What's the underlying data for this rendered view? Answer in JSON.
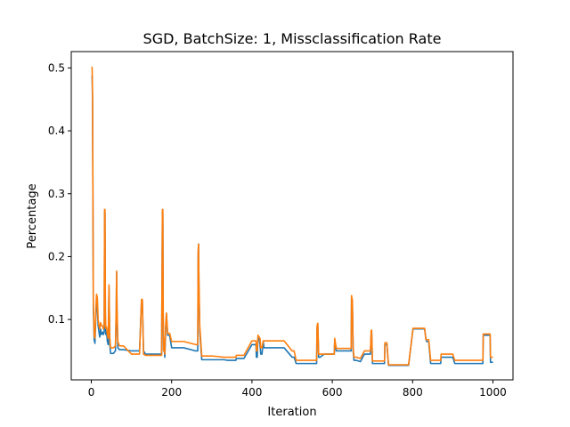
{
  "chart_data": {
    "type": "line",
    "title": "SGD, BatchSize: 1, Missclassification Rate",
    "xlabel": "Iteration",
    "ylabel": "Percentage",
    "xlim": [
      -50,
      1050
    ],
    "ylim": [
      0.004,
      0.526
    ],
    "xticks": [
      0,
      200,
      400,
      600,
      800,
      1000
    ],
    "xtick_labels": [
      "0",
      "200",
      "400",
      "600",
      "800",
      "1000"
    ],
    "yticks": [
      0.1,
      0.2,
      0.3,
      0.4,
      0.5
    ],
    "ytick_labels": [
      "0.1",
      "0.2",
      "0.3",
      "0.4",
      "0.5"
    ],
    "grid": false,
    "series": [
      {
        "color": "#1f77b4",
        "x": [
          0,
          2,
          3,
          5,
          7,
          9,
          11,
          13,
          15,
          17,
          19,
          21,
          23,
          25,
          28,
          30,
          32,
          33,
          34,
          35,
          36,
          38,
          40,
          42,
          44,
          46,
          48,
          50,
          55,
          60,
          62,
          63,
          64,
          66,
          70,
          80,
          100,
          120,
          125,
          127,
          130,
          135,
          175,
          177,
          178,
          179,
          180,
          181,
          183,
          185,
          187,
          190,
          195,
          200,
          210,
          230,
          260,
          265,
          266,
          267,
          268,
          270,
          275,
          280,
          300,
          330,
          340,
          360,
          361,
          370,
          380,
          400,
          410,
          411,
          413,
          415,
          418,
          420,
          422,
          425,
          428,
          430,
          440,
          460,
          480,
          500,
          505,
          510,
          540,
          560,
          561,
          562,
          564,
          566,
          570,
          580,
          600,
          605,
          606,
          610,
          620,
          640,
          646,
          647,
          648,
          650,
          652,
          654,
          656,
          660,
          670,
          680,
          681,
          690,
          695,
          697,
          698,
          700,
          710,
          720,
          730,
          731,
          733,
          736,
          740,
          745,
          760,
          790,
          800,
          801,
          810,
          830,
          833,
          835,
          840,
          845,
          860,
          870,
          871,
          880,
          890,
          900,
          905,
          910,
          920,
          960,
          975,
          976,
          990,
          993,
          994,
          1000
        ],
        "y": [
          0.487,
          0.487,
          0.45,
          0.12,
          0.068,
          0.062,
          0.1,
          0.13,
          0.12,
          0.09,
          0.08,
          0.072,
          0.085,
          0.076,
          0.08,
          0.076,
          0.08,
          0.27,
          0.27,
          0.1,
          0.076,
          0.078,
          0.065,
          0.06,
          0.15,
          0.06,
          0.046,
          0.046,
          0.046,
          0.05,
          0.11,
          0.175,
          0.11,
          0.055,
          0.052,
          0.052,
          0.05,
          0.05,
          0.13,
          0.13,
          0.05,
          0.045,
          0.045,
          0.27,
          0.27,
          0.1,
          0.05,
          0.06,
          0.04,
          0.08,
          0.11,
          0.075,
          0.075,
          0.055,
          0.055,
          0.055,
          0.05,
          0.05,
          0.2,
          0.22,
          0.15,
          0.08,
          0.036,
          0.036,
          0.036,
          0.036,
          0.035,
          0.035,
          0.038,
          0.038,
          0.038,
          0.06,
          0.06,
          0.04,
          0.04,
          0.07,
          0.07,
          0.06,
          0.045,
          0.045,
          0.065,
          0.055,
          0.055,
          0.055,
          0.055,
          0.04,
          0.04,
          0.03,
          0.03,
          0.03,
          0.03,
          0.085,
          0.09,
          0.04,
          0.04,
          0.045,
          0.045,
          0.045,
          0.065,
          0.05,
          0.05,
          0.05,
          0.05,
          0.05,
          0.135,
          0.13,
          0.05,
          0.035,
          0.035,
          0.035,
          0.033,
          0.045,
          0.045,
          0.045,
          0.045,
          0.08,
          0.08,
          0.03,
          0.03,
          0.03,
          0.03,
          0.06,
          0.06,
          0.06,
          0.027,
          0.027,
          0.027,
          0.027,
          0.08,
          0.085,
          0.085,
          0.085,
          0.07,
          0.065,
          0.065,
          0.03,
          0.03,
          0.03,
          0.04,
          0.04,
          0.04,
          0.04,
          0.03,
          0.03,
          0.03,
          0.03,
          0.03,
          0.075,
          0.075,
          0.075,
          0.032,
          0.032
        ]
      },
      {
        "color": "#ff7f0e",
        "x": [
          0,
          2,
          3,
          5,
          7,
          9,
          11,
          13,
          15,
          17,
          19,
          21,
          23,
          25,
          28,
          30,
          32,
          33,
          34,
          35,
          36,
          38,
          40,
          42,
          44,
          46,
          48,
          50,
          55,
          60,
          62,
          63,
          64,
          66,
          70,
          80,
          100,
          120,
          125,
          127,
          130,
          135,
          175,
          177,
          178,
          179,
          180,
          181,
          183,
          185,
          187,
          190,
          195,
          200,
          210,
          230,
          260,
          265,
          266,
          267,
          268,
          270,
          275,
          280,
          300,
          330,
          340,
          360,
          361,
          370,
          380,
          400,
          410,
          411,
          413,
          415,
          418,
          420,
          422,
          425,
          428,
          430,
          440,
          460,
          480,
          500,
          505,
          510,
          540,
          560,
          561,
          562,
          564,
          566,
          570,
          580,
          600,
          605,
          606,
          610,
          620,
          640,
          646,
          647,
          648,
          650,
          652,
          654,
          656,
          660,
          670,
          680,
          681,
          690,
          695,
          697,
          698,
          700,
          710,
          720,
          730,
          731,
          733,
          736,
          740,
          745,
          760,
          790,
          800,
          801,
          810,
          830,
          833,
          835,
          840,
          845,
          860,
          870,
          871,
          880,
          890,
          900,
          905,
          910,
          920,
          960,
          975,
          976,
          990,
          993,
          994,
          1000
        ],
        "y": [
          0.501,
          0.501,
          0.46,
          0.13,
          0.075,
          0.07,
          0.11,
          0.14,
          0.135,
          0.1,
          0.09,
          0.085,
          0.095,
          0.09,
          0.09,
          0.085,
          0.09,
          0.275,
          0.275,
          0.11,
          0.086,
          0.088,
          0.075,
          0.07,
          0.155,
          0.07,
          0.055,
          0.055,
          0.055,
          0.058,
          0.12,
          0.177,
          0.12,
          0.065,
          0.058,
          0.058,
          0.045,
          0.045,
          0.132,
          0.132,
          0.045,
          0.043,
          0.043,
          0.275,
          0.275,
          0.11,
          0.05,
          0.07,
          0.045,
          0.09,
          0.11,
          0.078,
          0.078,
          0.065,
          0.065,
          0.065,
          0.06,
          0.06,
          0.21,
          0.22,
          0.16,
          0.09,
          0.042,
          0.042,
          0.042,
          0.04,
          0.04,
          0.04,
          0.043,
          0.043,
          0.043,
          0.066,
          0.066,
          0.05,
          0.05,
          0.075,
          0.072,
          0.07,
          0.055,
          0.055,
          0.066,
          0.066,
          0.066,
          0.066,
          0.066,
          0.05,
          0.05,
          0.035,
          0.035,
          0.035,
          0.035,
          0.09,
          0.094,
          0.045,
          0.045,
          0.045,
          0.045,
          0.045,
          0.07,
          0.054,
          0.054,
          0.054,
          0.054,
          0.054,
          0.138,
          0.13,
          0.055,
          0.04,
          0.04,
          0.04,
          0.038,
          0.05,
          0.05,
          0.05,
          0.05,
          0.083,
          0.083,
          0.034,
          0.034,
          0.034,
          0.034,
          0.063,
          0.063,
          0.063,
          0.028,
          0.028,
          0.028,
          0.028,
          0.08,
          0.086,
          0.086,
          0.086,
          0.068,
          0.068,
          0.068,
          0.035,
          0.035,
          0.035,
          0.045,
          0.045,
          0.045,
          0.045,
          0.035,
          0.035,
          0.035,
          0.035,
          0.035,
          0.077,
          0.077,
          0.077,
          0.04,
          0.04
        ]
      }
    ]
  }
}
